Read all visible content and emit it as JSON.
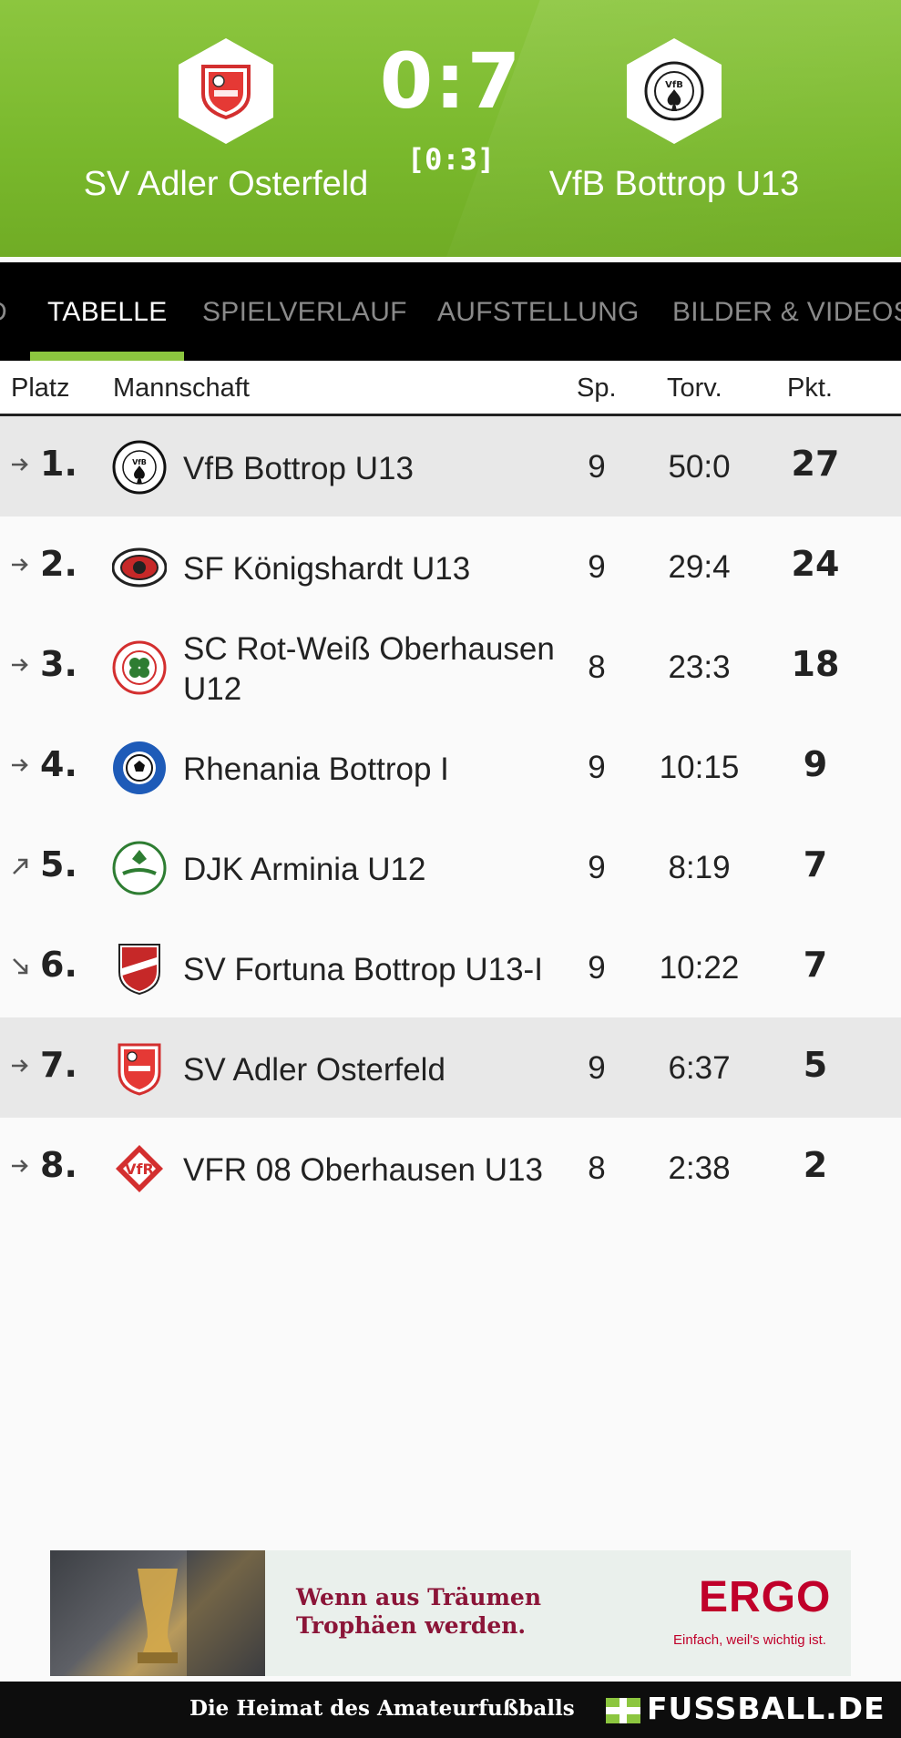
{
  "match": {
    "home_team": "SV Adler Osterfeld",
    "away_team": "VfB Bottrop U13",
    "score": "0:7",
    "halftime": "[0:3]"
  },
  "tabs": [
    {
      "label": "D"
    },
    {
      "label": "TABELLE",
      "active": true
    },
    {
      "label": "SPIELVERLAUF"
    },
    {
      "label": "AUFSTELLUNG"
    },
    {
      "label": "BILDER & VIDEOS"
    }
  ],
  "table": {
    "headers": {
      "platz": "Platz",
      "mannschaft": "Mannschaft",
      "sp": "Sp.",
      "torv": "Torv.",
      "pkt": "Pkt."
    },
    "rows": [
      {
        "rank": "1.",
        "trend": "right",
        "team": "VfB Bottrop U13",
        "sp": "9",
        "torv": "50:0",
        "pkt": "27",
        "logo": "vfb-bottrop-logo",
        "highlight": true
      },
      {
        "rank": "2.",
        "trend": "right",
        "team": "SF Königshardt U13",
        "sp": "9",
        "torv": "29:4",
        "pkt": "24",
        "logo": "sf-koenigshardt-logo",
        "highlight": false
      },
      {
        "rank": "3.",
        "trend": "right",
        "team": "SC Rot-Weiß Oberhausen U12",
        "sp": "8",
        "torv": "23:3",
        "pkt": "18",
        "logo": "rot-weiss-oberhausen-logo",
        "highlight": false
      },
      {
        "rank": "4.",
        "trend": "right",
        "team": "Rhenania Bottrop I",
        "sp": "9",
        "torv": "10:15",
        "pkt": "9",
        "logo": "rhenania-bottrop-logo",
        "highlight": false
      },
      {
        "rank": "5.",
        "trend": "up",
        "team": "DJK Arminia U12",
        "sp": "9",
        "torv": "8:19",
        "pkt": "7",
        "logo": "djk-arminia-logo",
        "highlight": false
      },
      {
        "rank": "6.",
        "trend": "down",
        "team": "SV Fortuna Bottrop U13-I",
        "sp": "9",
        "torv": "10:22",
        "pkt": "7",
        "logo": "sv-fortuna-logo",
        "highlight": false
      },
      {
        "rank": "7.",
        "trend": "right",
        "team": "SV Adler Osterfeld",
        "sp": "9",
        "torv": "6:37",
        "pkt": "5",
        "logo": "sv-adler-logo",
        "highlight": true
      },
      {
        "rank": "8.",
        "trend": "right",
        "team": "VFR 08 Oberhausen U13",
        "sp": "8",
        "torv": "2:38",
        "pkt": "2",
        "logo": "vfr-08-logo",
        "highlight": false
      }
    ]
  },
  "ad": {
    "headline_line1": "Wenn aus Träumen",
    "headline_line2": "Trophäen werden.",
    "brand": "ERGO",
    "slogan": "Einfach, weil's wichtig ist."
  },
  "footer": {
    "tagline": "Die Heimat des Amateurfußballs",
    "brand": "FUSSBALL.DE"
  },
  "colors": {
    "header_green": "#8cc63f",
    "tab_indicator": "#8cc63f",
    "highlight_row": "#e8e8e8",
    "ad_brand_red": "#c0002a"
  }
}
